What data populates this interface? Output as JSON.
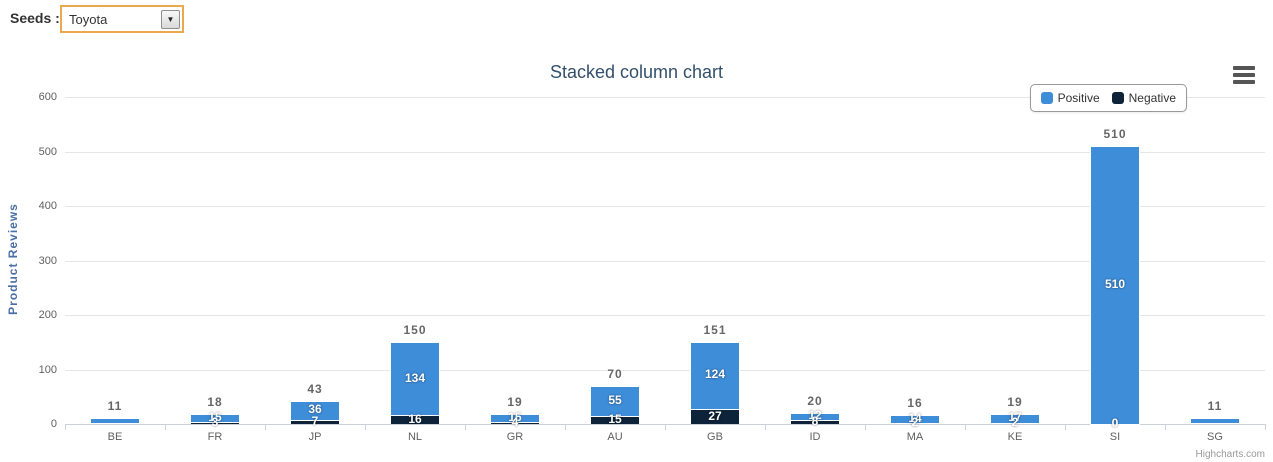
{
  "seeds_control": {
    "label": "Seeds :",
    "selected": "Toyota",
    "dropdown_arrow": "▼",
    "border_color": "#eaa94e"
  },
  "chart": {
    "title": "Stacked column chart",
    "y_axis_title": "Product Reviews",
    "credit": "Highcharts.com",
    "menu_icon": "hamburger-icon",
    "legend": [
      {
        "name": "Positive",
        "color": "#3e8dd9"
      },
      {
        "name": "Negative",
        "color": "#0d2339"
      }
    ]
  },
  "chart_data": {
    "type": "bar",
    "stacked": true,
    "title": "Stacked column chart",
    "xlabel": "",
    "ylabel": "Product Reviews",
    "ylim": [
      0,
      600
    ],
    "y_ticks": [
      0,
      100,
      200,
      300,
      400,
      500,
      600
    ],
    "grid": true,
    "legend_position": "top-right",
    "categories": [
      "BE",
      "FR",
      "JP",
      "NL",
      "GR",
      "AU",
      "GB",
      "ID",
      "MA",
      "KE",
      "SI",
      "SG"
    ],
    "series": [
      {
        "name": "Positive",
        "color": "#3e8dd9",
        "values": [
          10,
          15,
          36,
          134,
          15,
          55,
          124,
          12,
          14,
          17,
          510,
          9
        ]
      },
      {
        "name": "Negative",
        "color": "#0d2339",
        "values": [
          1,
          3,
          7,
          16,
          4,
          15,
          27,
          8,
          2,
          2,
          0,
          2
        ]
      }
    ],
    "totals": [
      11,
      18,
      43,
      150,
      19,
      70,
      151,
      20,
      16,
      19,
      510,
      11
    ],
    "positive_labels": [
      null,
      "15",
      "36",
      "134",
      "15",
      "55",
      "124",
      "12",
      "14",
      "17",
      "510",
      null
    ],
    "negative_labels": [
      null,
      "3",
      "7",
      "16",
      "4",
      "15",
      "27",
      "8",
      "2",
      "2",
      "0",
      null
    ]
  }
}
